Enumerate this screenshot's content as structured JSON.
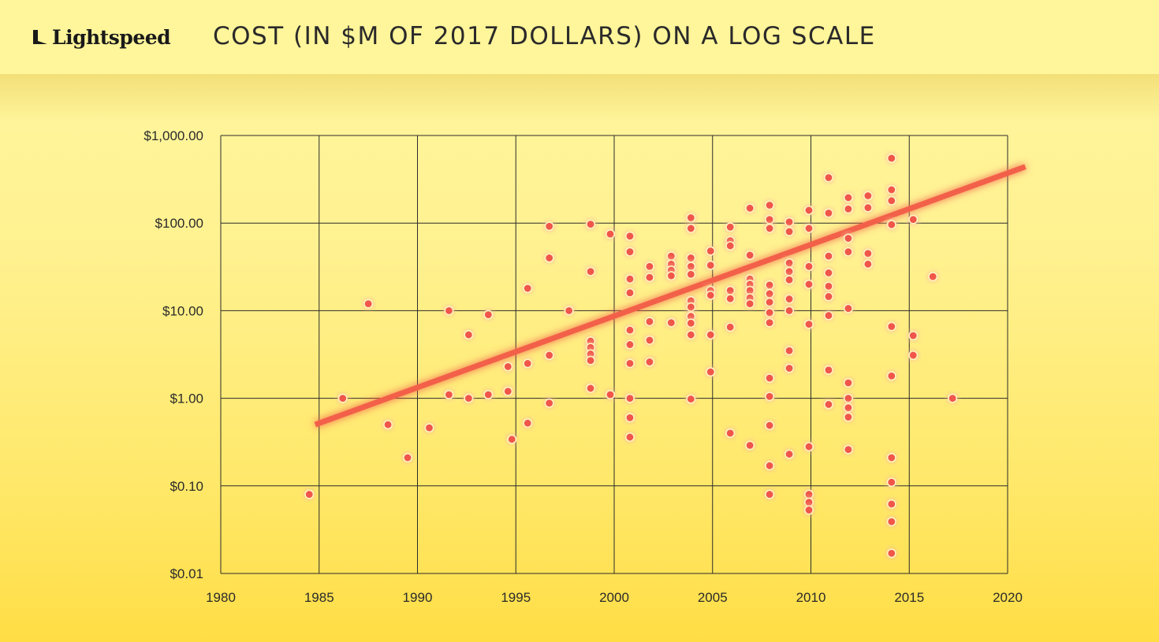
{
  "brand": {
    "name": "Lightspeed"
  },
  "header": {
    "title": "COST (IN $M OF 2017 DOLLARS) ON A LOG SCALE"
  },
  "colors": {
    "point": "#f0564a",
    "trend": "#f3614a",
    "grid": "#2b2b2b"
  },
  "chart_data": {
    "type": "scatter",
    "title": "COST (IN $M OF 2017 DOLLARS) ON A LOG SCALE",
    "xlabel": "",
    "ylabel": "",
    "x_scale": "linear",
    "y_scale": "log",
    "xlim": [
      1980,
      2020
    ],
    "ylim": [
      0.01,
      1000
    ],
    "x_ticks": [
      1980,
      1985,
      1990,
      1995,
      2000,
      2005,
      2010,
      2015,
      2020
    ],
    "x_tick_labels": [
      "1980",
      "1985",
      "1990",
      "1995",
      "2000",
      "2005",
      "2010",
      "2015",
      "2020"
    ],
    "y_ticks": [
      0.01,
      0.1,
      1,
      10,
      100,
      1000
    ],
    "y_tick_labels": [
      "$0.01",
      "$0.10",
      "$1.00",
      "$10.00",
      "$100.00",
      "$1,000.00"
    ],
    "grid": true,
    "trendline": {
      "x": [
        1984.8,
        2020.9
      ],
      "y": [
        0.5,
        440
      ]
    },
    "points": [
      [
        1984.5,
        0.08
      ],
      [
        1986.2,
        1.0
      ],
      [
        1987.5,
        12
      ],
      [
        1988.5,
        0.5
      ],
      [
        1989.5,
        0.21
      ],
      [
        1990.6,
        0.46
      ],
      [
        1991.6,
        10
      ],
      [
        1991.6,
        1.1
      ],
      [
        1992.6,
        5.3
      ],
      [
        1992.6,
        1.0
      ],
      [
        1993.6,
        9
      ],
      [
        1993.6,
        1.1
      ],
      [
        1994.6,
        2.3
      ],
      [
        1994.6,
        1.2
      ],
      [
        1994.8,
        0.34
      ],
      [
        1995.6,
        18
      ],
      [
        1995.6,
        2.5
      ],
      [
        1995.6,
        0.52
      ],
      [
        1996.7,
        92
      ],
      [
        1996.7,
        40
      ],
      [
        1996.7,
        3.1
      ],
      [
        1996.7,
        0.88
      ],
      [
        1997.7,
        10
      ],
      [
        1998.8,
        97
      ],
      [
        1998.8,
        28
      ],
      [
        1998.8,
        4.5
      ],
      [
        1998.8,
        3.8
      ],
      [
        1998.8,
        3.2
      ],
      [
        1998.8,
        2.7
      ],
      [
        1998.8,
        1.3
      ],
      [
        1999.8,
        75
      ],
      [
        1999.8,
        1.1
      ],
      [
        2000.8,
        71
      ],
      [
        2000.8,
        47
      ],
      [
        2000.8,
        23
      ],
      [
        2000.8,
        16
      ],
      [
        2000.8,
        6
      ],
      [
        2000.8,
        4.1
      ],
      [
        2000.8,
        2.5
      ],
      [
        2000.8,
        1.0
      ],
      [
        2000.8,
        0.6
      ],
      [
        2000.8,
        0.36
      ],
      [
        2001.8,
        32
      ],
      [
        2001.8,
        24
      ],
      [
        2001.8,
        7.5
      ],
      [
        2001.8,
        4.6
      ],
      [
        2001.8,
        2.6
      ],
      [
        2002.9,
        42
      ],
      [
        2002.9,
        34
      ],
      [
        2002.9,
        29
      ],
      [
        2002.9,
        25
      ],
      [
        2002.9,
        7.3
      ],
      [
        2003.9,
        115
      ],
      [
        2003.9,
        87
      ],
      [
        2003.9,
        40
      ],
      [
        2003.9,
        32
      ],
      [
        2003.9,
        26
      ],
      [
        2003.9,
        13
      ],
      [
        2003.9,
        11
      ],
      [
        2003.9,
        8.6
      ],
      [
        2003.9,
        7.2
      ],
      [
        2003.9,
        5.3
      ],
      [
        2003.9,
        0.98
      ],
      [
        2004.9,
        48
      ],
      [
        2004.9,
        33
      ],
      [
        2004.9,
        17
      ],
      [
        2004.9,
        15
      ],
      [
        2004.9,
        5.3
      ],
      [
        2004.9,
        2.0
      ],
      [
        2005.9,
        90
      ],
      [
        2005.9,
        63
      ],
      [
        2005.9,
        55
      ],
      [
        2005.9,
        17
      ],
      [
        2005.9,
        13.7
      ],
      [
        2005.9,
        6.5
      ],
      [
        2005.9,
        0.4
      ],
      [
        2006.9,
        148
      ],
      [
        2006.9,
        43
      ],
      [
        2006.9,
        23
      ],
      [
        2006.9,
        20
      ],
      [
        2006.9,
        17
      ],
      [
        2006.9,
        14
      ],
      [
        2006.9,
        12
      ],
      [
        2006.9,
        0.29
      ],
      [
        2007.9,
        160
      ],
      [
        2007.9,
        110
      ],
      [
        2007.9,
        87
      ],
      [
        2007.9,
        19.6
      ],
      [
        2007.9,
        15.6
      ],
      [
        2007.9,
        12.5
      ],
      [
        2007.9,
        9.5
      ],
      [
        2007.9,
        7.3
      ],
      [
        2007.9,
        1.7
      ],
      [
        2007.9,
        1.05
      ],
      [
        2007.9,
        0.49
      ],
      [
        2007.9,
        0.17
      ],
      [
        2007.9,
        0.08
      ],
      [
        2008.9,
        103
      ],
      [
        2008.9,
        80
      ],
      [
        2008.9,
        35
      ],
      [
        2008.9,
        28
      ],
      [
        2008.9,
        22.5
      ],
      [
        2008.9,
        13.6
      ],
      [
        2008.9,
        10
      ],
      [
        2008.9,
        3.5
      ],
      [
        2008.9,
        2.2
      ],
      [
        2008.9,
        0.23
      ],
      [
        2009.9,
        140
      ],
      [
        2009.9,
        87
      ],
      [
        2009.9,
        32
      ],
      [
        2009.9,
        20
      ],
      [
        2009.9,
        7
      ],
      [
        2009.9,
        0.28
      ],
      [
        2009.9,
        0.08
      ],
      [
        2009.9,
        0.065
      ],
      [
        2009.9,
        0.053
      ],
      [
        2010.9,
        330
      ],
      [
        2010.9,
        130
      ],
      [
        2010.9,
        42
      ],
      [
        2010.9,
        27
      ],
      [
        2010.9,
        19
      ],
      [
        2010.9,
        14.5
      ],
      [
        2010.9,
        8.8
      ],
      [
        2010.9,
        2.1
      ],
      [
        2010.9,
        0.85
      ],
      [
        2011.9,
        195
      ],
      [
        2011.9,
        145
      ],
      [
        2011.9,
        67
      ],
      [
        2011.9,
        47
      ],
      [
        2011.9,
        10.6
      ],
      [
        2011.9,
        1.5
      ],
      [
        2011.9,
        1.0
      ],
      [
        2011.9,
        0.78
      ],
      [
        2011.9,
        0.61
      ],
      [
        2011.9,
        0.26
      ],
      [
        2012.9,
        205
      ],
      [
        2012.9,
        150
      ],
      [
        2012.9,
        45
      ],
      [
        2012.9,
        34
      ],
      [
        2014.1,
        550
      ],
      [
        2014.1,
        240
      ],
      [
        2014.1,
        180
      ],
      [
        2014.1,
        96
      ],
      [
        2014.1,
        6.6
      ],
      [
        2014.1,
        1.8
      ],
      [
        2014.1,
        0.21
      ],
      [
        2014.1,
        0.11
      ],
      [
        2014.1,
        0.062
      ],
      [
        2014.1,
        0.039
      ],
      [
        2014.1,
        0.017
      ],
      [
        2015.2,
        110
      ],
      [
        2015.2,
        5.2
      ],
      [
        2015.2,
        3.1
      ],
      [
        2016.2,
        24.5
      ],
      [
        2017.2,
        1.0
      ]
    ]
  }
}
